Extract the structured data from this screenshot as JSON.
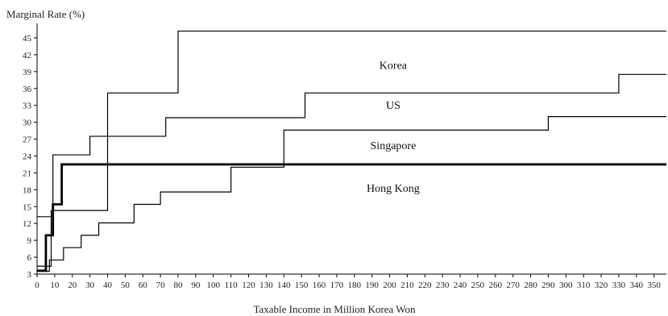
{
  "chart_data": {
    "type": "line",
    "title": "",
    "ylabel": "Marginal Rate (%)",
    "xlabel": "Taxable Income in Million Korea Won",
    "xlim": [
      0,
      357
    ],
    "ylim": [
      3,
      47
    ],
    "x_ticks": [
      0,
      10,
      20,
      30,
      40,
      50,
      60,
      70,
      80,
      90,
      100,
      110,
      120,
      130,
      140,
      150,
      160,
      170,
      180,
      190,
      200,
      210,
      220,
      230,
      240,
      250,
      260,
      270,
      280,
      290,
      300,
      310,
      320,
      330,
      340,
      350
    ],
    "y_ticks": [
      3,
      6,
      9,
      12,
      15,
      18,
      21,
      24,
      27,
      30,
      33,
      36,
      39,
      42,
      45
    ],
    "grid": false,
    "legend": "inline labels",
    "series": [
      {
        "name": "Korea",
        "step": true,
        "x": [
          0,
          8,
          40,
          80,
          357
        ],
        "y": [
          4.4,
          14.3,
          35.2,
          46.2,
          46.2
        ],
        "stroke_width": 1.2,
        "label_at": [
          202,
          39.5
        ]
      },
      {
        "name": "US",
        "step": true,
        "x": [
          0,
          9,
          30,
          73,
          152,
          330,
          357
        ],
        "y": [
          13.2,
          24.2,
          27.5,
          30.8,
          35.2,
          38.5,
          38.5
        ],
        "stroke_width": 1.2,
        "label_at": [
          202,
          32.4
        ]
      },
      {
        "name": "Singapore",
        "step": true,
        "x": [
          0,
          7,
          15,
          25,
          35,
          55,
          70,
          110,
          140,
          290,
          357
        ],
        "y": [
          3.5,
          5.5,
          7.7,
          9.9,
          12.1,
          15.4,
          17.6,
          22.0,
          28.6,
          31.0,
          31.0
        ],
        "stroke_width": 1.2,
        "label_at": [
          202,
          25.2
        ]
      },
      {
        "name": "Hong Kong",
        "step": true,
        "x": [
          0,
          5,
          9,
          14,
          357
        ],
        "y": [
          3.6,
          9.9,
          15.4,
          22.5,
          22.5
        ],
        "stroke_width": 2.8,
        "label_at": [
          202,
          17.6
        ]
      }
    ]
  }
}
